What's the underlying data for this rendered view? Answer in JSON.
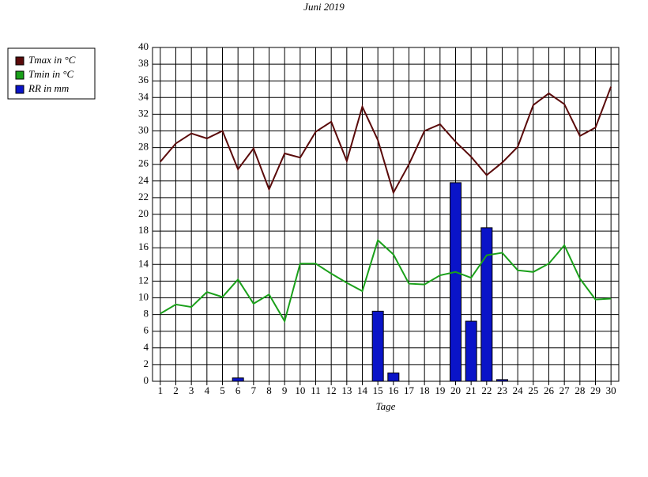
{
  "chart_data": {
    "type": "line-bar",
    "title": "Juni 2019",
    "x_label": "Tage",
    "categories": [
      "1",
      "2",
      "3",
      "4",
      "5",
      "6",
      "7",
      "8",
      "9",
      "10",
      "11",
      "12",
      "13",
      "14",
      "15",
      "16",
      "17",
      "18",
      "19",
      "20",
      "21",
      "22",
      "23",
      "24",
      "25",
      "26",
      "27",
      "28",
      "29",
      "30"
    ],
    "series": [
      {
        "name": "Tmax in °C",
        "color": "#5a0a0a",
        "kind": "line",
        "values": [
          26.3,
          28.5,
          29.7,
          29.1,
          30.0,
          25.4,
          27.9,
          23.0,
          27.3,
          26.8,
          29.9,
          31.1,
          26.4,
          32.9,
          28.9,
          22.6,
          26.0,
          30.0,
          30.8,
          28.7,
          26.9,
          24.7,
          26.2,
          28.1,
          33.1,
          34.5,
          33.2,
          29.4,
          30.4,
          35.3
        ]
      },
      {
        "name": "Tmin in °C",
        "color": "#1aa01a",
        "kind": "line",
        "values": [
          8.1,
          9.2,
          8.9,
          10.7,
          10.1,
          12.2,
          9.3,
          10.4,
          7.2,
          14.1,
          14.1,
          12.9,
          11.8,
          10.8,
          16.9,
          15.2,
          11.7,
          11.6,
          12.7,
          13.1,
          12.4,
          15.1,
          15.4,
          13.3,
          13.1,
          14.1,
          16.3,
          12.3,
          9.8,
          9.9
        ]
      },
      {
        "name": "RR in mm",
        "color": "#0a14c8",
        "kind": "bar",
        "values": [
          0,
          0,
          0,
          0,
          0,
          0.4,
          0,
          0,
          0,
          0,
          0,
          0,
          0,
          0,
          8.4,
          1.0,
          0,
          0,
          0,
          23.8,
          7.2,
          18.4,
          0.2,
          0,
          0,
          0,
          0,
          0,
          0,
          0
        ]
      }
    ],
    "ylim": [
      0,
      40
    ],
    "yticks": [
      0,
      2,
      4,
      6,
      8,
      10,
      12,
      14,
      16,
      18,
      20,
      22,
      24,
      26,
      28,
      30,
      32,
      34,
      36,
      38,
      40
    ],
    "grid": true
  }
}
